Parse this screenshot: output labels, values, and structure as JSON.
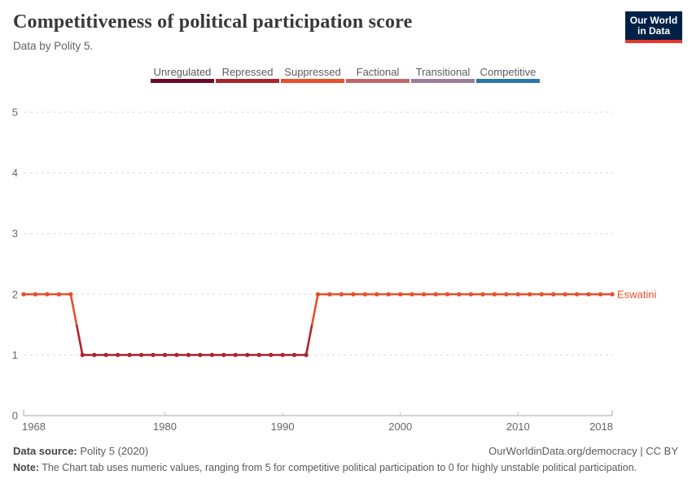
{
  "header": {
    "title": "Competitiveness of political participation score",
    "subtitle": "Data by Polity 5.",
    "logo": {
      "line1": "Our World",
      "line2": "in Data",
      "bg": "#002147",
      "accent": "#e8362d"
    }
  },
  "legend": {
    "items": [
      {
        "label": "Unregulated",
        "color": "#6d0b24"
      },
      {
        "label": "Repressed",
        "color": "#a9262f"
      },
      {
        "label": "Suppressed",
        "color": "#e8502b"
      },
      {
        "label": "Factional",
        "color": "#c0676c"
      },
      {
        "label": "Transitional",
        "color": "#9e7c97"
      },
      {
        "label": "Competitive",
        "color": "#2e74a7"
      }
    ]
  },
  "chart_data": {
    "type": "line",
    "title": "Competitiveness of political participation score",
    "subtitle": "Data by Polity 5.",
    "entity_label": "Eswatini",
    "x": [
      1968,
      1969,
      1970,
      1971,
      1972,
      1973,
      1974,
      1975,
      1976,
      1977,
      1978,
      1979,
      1980,
      1981,
      1982,
      1983,
      1984,
      1985,
      1986,
      1987,
      1988,
      1989,
      1990,
      1991,
      1992,
      1993,
      1994,
      1995,
      1996,
      1997,
      1998,
      1999,
      2000,
      2001,
      2002,
      2003,
      2004,
      2005,
      2006,
      2007,
      2008,
      2009,
      2010,
      2011,
      2012,
      2013,
      2014,
      2015,
      2016,
      2017,
      2018
    ],
    "series": [
      {
        "name": "Eswatini",
        "values": [
          2,
          2,
          2,
          2,
          2,
          1,
          1,
          1,
          1,
          1,
          1,
          1,
          1,
          1,
          1,
          1,
          1,
          1,
          1,
          1,
          1,
          1,
          1,
          1,
          1,
          2,
          2,
          2,
          2,
          2,
          2,
          2,
          2,
          2,
          2,
          2,
          2,
          2,
          2,
          2,
          2,
          2,
          2,
          2,
          2,
          2,
          2,
          2,
          2,
          2,
          2
        ]
      }
    ],
    "x_ticks": [
      1968,
      1980,
      1990,
      2000,
      2010,
      2018
    ],
    "y_ticks": [
      0,
      1,
      2,
      3,
      4,
      5
    ],
    "xlim": [
      1968,
      2018
    ],
    "ylim": [
      0,
      5
    ],
    "grid": "dashed-horizontal",
    "category_scale": [
      "Unregulated",
      "Repressed",
      "Suppressed",
      "Factional",
      "Transitional",
      "Competitive"
    ],
    "colors": {
      "grid": "#d9d9d9",
      "axis": "#a8a8a8",
      "tick": "#c4c4c4",
      "tick_label": "#666666",
      "marker_line_width": 2.6
    }
  },
  "footer": {
    "source_label": "Data source:",
    "source_value": " Polity 5 (2020)",
    "attribution": "OurWorldinData.org/democracy | CC BY",
    "note_label": "Note:",
    "note_value": " The Chart tab uses numeric values, ranging from 5 for competitive political participation to 0 for highly unstable political participation."
  }
}
